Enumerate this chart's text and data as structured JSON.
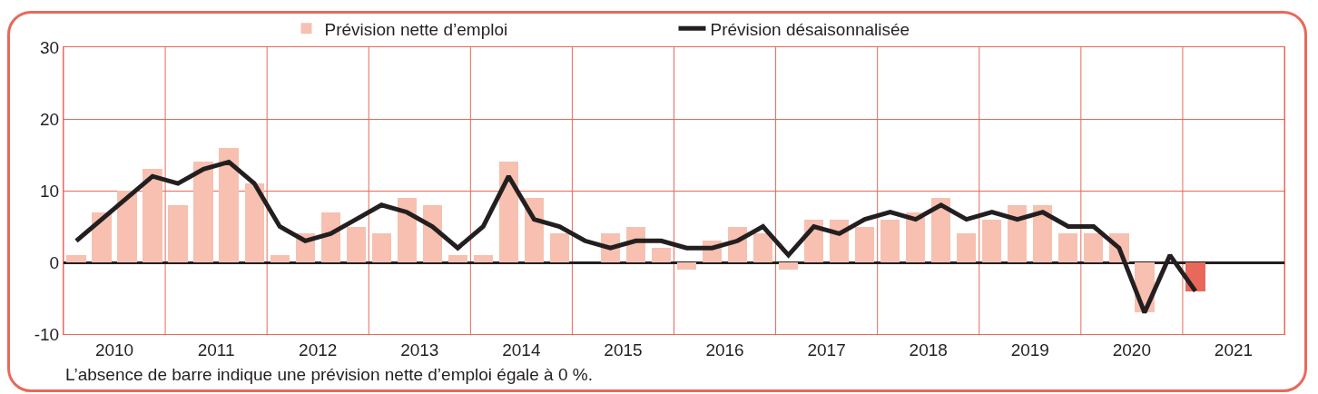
{
  "chart_data": {
    "type": "bar",
    "x": [
      2010.125,
      2010.375,
      2010.625,
      2010.875,
      2011.125,
      2011.375,
      2011.625,
      2011.875,
      2012.125,
      2012.375,
      2012.625,
      2012.875,
      2013.125,
      2013.375,
      2013.625,
      2013.875,
      2014.125,
      2014.375,
      2014.625,
      2014.875,
      2015.125,
      2015.375,
      2015.625,
      2015.875,
      2016.125,
      2016.375,
      2016.625,
      2016.875,
      2017.125,
      2017.375,
      2017.625,
      2017.875,
      2018.125,
      2018.375,
      2018.625,
      2018.875,
      2019.125,
      2019.375,
      2019.625,
      2019.875,
      2020.125,
      2020.375,
      2020.625,
      2020.875,
      2021.125
    ],
    "series": [
      {
        "name": "Prévision nette d’emploi",
        "colors": [
          "#f7c0b0",
          "#f7c0b0",
          "#f7c0b0",
          "#f7c0b0",
          "#f7c0b0",
          "#f7c0b0",
          "#f7c0b0",
          "#f7c0b0",
          "#f7c0b0",
          "#f7c0b0",
          "#f7c0b0",
          "#f7c0b0",
          "#f7c0b0",
          "#f7c0b0",
          "#f7c0b0",
          "#f7c0b0",
          "#f7c0b0",
          "#f7c0b0",
          "#f7c0b0",
          "#f7c0b0",
          "#f7c0b0",
          "#f7c0b0",
          "#f7c0b0",
          "#f7c0b0",
          "#f7c0b0",
          "#f7c0b0",
          "#f7c0b0",
          "#f7c0b0",
          "#f7c0b0",
          "#f7c0b0",
          "#f7c0b0",
          "#f7c0b0",
          "#f7c0b0",
          "#f7c0b0",
          "#f7c0b0",
          "#f7c0b0",
          "#f7c0b0",
          "#f7c0b0",
          "#f7c0b0",
          "#f7c0b0",
          "#f7c0b0",
          "#f7c0b0",
          "#f7c0b0",
          "#f7c0b0",
          "#e8695a"
        ],
        "values": [
          1,
          7,
          10,
          13,
          8,
          14,
          16,
          11,
          1,
          4,
          7,
          5,
          4,
          9,
          8,
          1,
          1,
          14,
          9,
          4,
          0,
          4,
          5,
          2,
          -1,
          3,
          5,
          4,
          -1,
          6,
          6,
          5,
          6,
          7,
          9,
          4,
          6,
          8,
          8,
          4,
          4,
          4,
          -7,
          0,
          -4
        ]
      },
      {
        "name": "Prévision désaisonnalisée",
        "type": "line",
        "color": "#231f20",
        "values": [
          3,
          6,
          9,
          12,
          11,
          13,
          14,
          11,
          5,
          3,
          4,
          6,
          8,
          7,
          5,
          2,
          5,
          12,
          6,
          5,
          3,
          2,
          3,
          3,
          2,
          2,
          3,
          5,
          1,
          5,
          4,
          6,
          7,
          6,
          8,
          6,
          7,
          6,
          7,
          5,
          5,
          2,
          -7,
          1,
          -4
        ]
      }
    ],
    "xlim": [
      2010,
      2022
    ],
    "xticks": [
      {
        "value": 2010,
        "label": null
      },
      {
        "value": 2010.5,
        "label": "2010"
      },
      {
        "value": 2011,
        "label": null
      },
      {
        "value": 2011.5,
        "label": "2011"
      },
      {
        "value": 2012,
        "label": null
      },
      {
        "value": 2012.5,
        "label": "2012"
      },
      {
        "value": 2013,
        "label": null
      },
      {
        "value": 2013.5,
        "label": "2013"
      },
      {
        "value": 2014,
        "label": null
      },
      {
        "value": 2014.5,
        "label": "2014"
      },
      {
        "value": 2015,
        "label": null
      },
      {
        "value": 2015.5,
        "label": "2015"
      },
      {
        "value": 2016,
        "label": null
      },
      {
        "value": 2016.5,
        "label": "2016"
      },
      {
        "value": 2017,
        "label": null
      },
      {
        "value": 2017.5,
        "label": "2017"
      },
      {
        "value": 2018,
        "label": null
      },
      {
        "value": 2018.5,
        "label": "2018"
      },
      {
        "value": 2019,
        "label": null
      },
      {
        "value": 2019.5,
        "label": "2019"
      },
      {
        "value": 2020,
        "label": null
      },
      {
        "value": 2020.5,
        "label": "2020"
      },
      {
        "value": 2021,
        "label": null
      },
      {
        "value": 2021.5,
        "label": "2021"
      },
      {
        "value": 2022,
        "label": null
      }
    ],
    "ylim": [
      -10,
      30
    ],
    "yticks": [
      -10,
      0,
      10,
      20,
      30
    ],
    "grid": true,
    "legend": "top",
    "marker": "none",
    "line_style": "solid",
    "annotations": [
      "L’absence de barre indique une prévision nette d’emploi égale à 0 %."
    ]
  }
}
